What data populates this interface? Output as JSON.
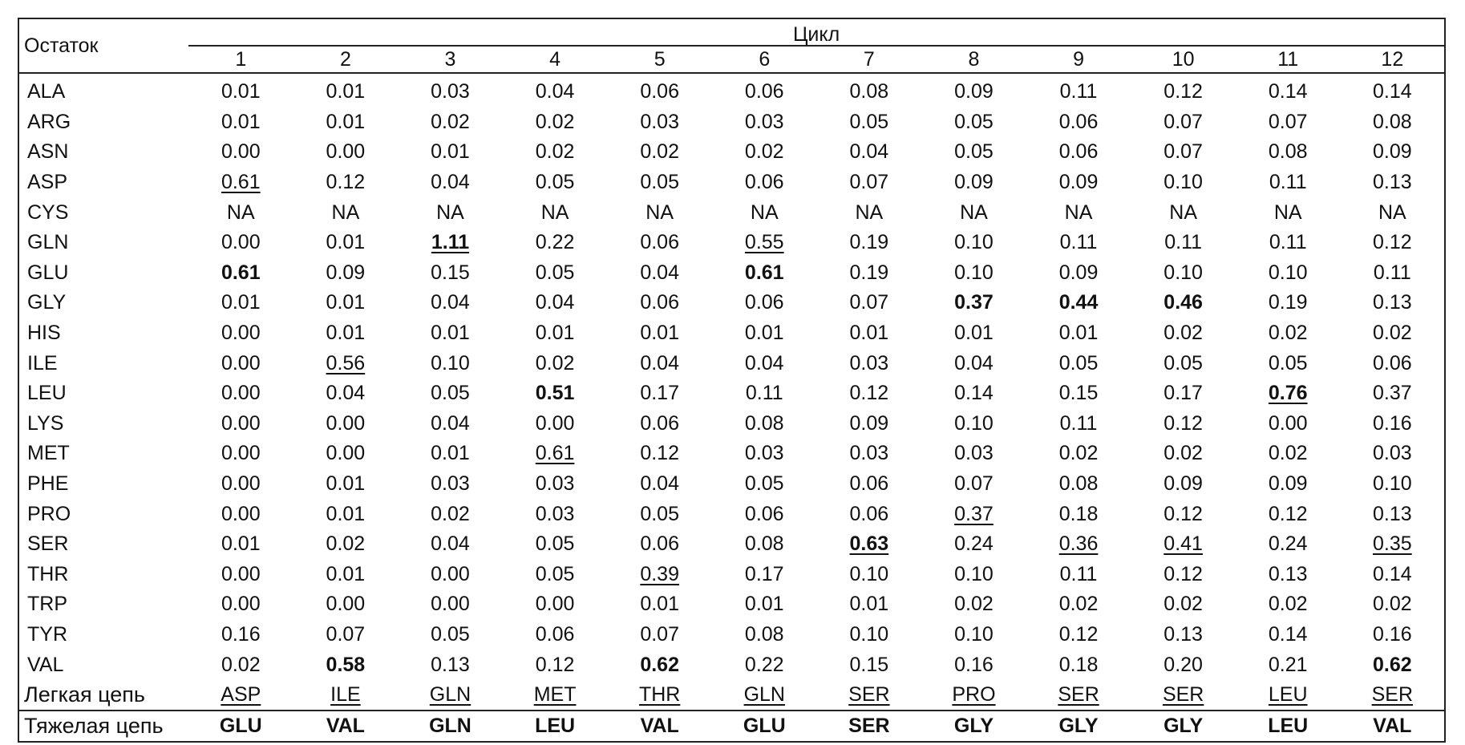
{
  "header": {
    "residue_label": "Остаток",
    "cycle_label": "Цикл",
    "cycles": [
      "1",
      "2",
      "3",
      "4",
      "5",
      "6",
      "7",
      "8",
      "9",
      "10",
      "11",
      "12"
    ]
  },
  "rows": [
    {
      "name": "ALA",
      "values": [
        "0.01",
        "0.01",
        "0.03",
        "0.04",
        "0.06",
        "0.06",
        "0.08",
        "0.09",
        "0.11",
        "0.12",
        "0.14",
        "0.14"
      ],
      "underline": [],
      "bold": []
    },
    {
      "name": "ARG",
      "values": [
        "0.01",
        "0.01",
        "0.02",
        "0.02",
        "0.03",
        "0.03",
        "0.05",
        "0.05",
        "0.06",
        "0.07",
        "0.07",
        "0.08"
      ],
      "underline": [],
      "bold": []
    },
    {
      "name": "ASN",
      "values": [
        "0.00",
        "0.00",
        "0.01",
        "0.02",
        "0.02",
        "0.02",
        "0.04",
        "0.05",
        "0.06",
        "0.07",
        "0.08",
        "0.09"
      ],
      "underline": [],
      "bold": []
    },
    {
      "name": "ASP",
      "values": [
        "0.61",
        "0.12",
        "0.04",
        "0.05",
        "0.05",
        "0.06",
        "0.07",
        "0.09",
        "0.09",
        "0.10",
        "0.11",
        "0.13"
      ],
      "underline": [
        0
      ],
      "bold": []
    },
    {
      "name": "CYS",
      "values": [
        "NA",
        "NA",
        "NA",
        "NA",
        "NA",
        "NA",
        "NA",
        "NA",
        "NA",
        "NA",
        "NA",
        "NA"
      ],
      "underline": [],
      "bold": []
    },
    {
      "name": "GLN",
      "values": [
        "0.00",
        "0.01",
        "1.11",
        "0.22",
        "0.06",
        "0.55",
        "0.19",
        "0.10",
        "0.11",
        "0.11",
        "0.11",
        "0.12"
      ],
      "underline": [
        2,
        5
      ],
      "bold": [
        2
      ]
    },
    {
      "name": "GLU",
      "values": [
        "0.61",
        "0.09",
        "0.15",
        "0.05",
        "0.04",
        "0.61",
        "0.19",
        "0.10",
        "0.09",
        "0.10",
        "0.10",
        "0.11"
      ],
      "underline": [],
      "bold": [
        0,
        5
      ]
    },
    {
      "name": "GLY",
      "values": [
        "0.01",
        "0.01",
        "0.04",
        "0.04",
        "0.06",
        "0.06",
        "0.07",
        "0.37",
        "0.44",
        "0.46",
        "0.19",
        "0.13"
      ],
      "underline": [],
      "bold": [
        7,
        8,
        9
      ]
    },
    {
      "name": "HIS",
      "values": [
        "0.00",
        "0.01",
        "0.01",
        "0.01",
        "0.01",
        "0.01",
        "0.01",
        "0.01",
        "0.01",
        "0.02",
        "0.02",
        "0.02"
      ],
      "underline": [],
      "bold": []
    },
    {
      "name": "ILE",
      "values": [
        "0.00",
        "0.56",
        "0.10",
        "0.02",
        "0.04",
        "0.04",
        "0.03",
        "0.04",
        "0.05",
        "0.05",
        "0.05",
        "0.06"
      ],
      "underline": [
        1
      ],
      "bold": []
    },
    {
      "name": "LEU",
      "values": [
        "0.00",
        "0.04",
        "0.05",
        "0.51",
        "0.17",
        "0.11",
        "0.12",
        "0.14",
        "0.15",
        "0.17",
        "0.76",
        "0.37"
      ],
      "underline": [
        10
      ],
      "bold": [
        3,
        10
      ]
    },
    {
      "name": "LYS",
      "values": [
        "0.00",
        "0.00",
        "0.04",
        "0.00",
        "0.06",
        "0.08",
        "0.09",
        "0.10",
        "0.11",
        "0.12",
        "0.00",
        "0.16"
      ],
      "underline": [],
      "bold": []
    },
    {
      "name": "MET",
      "values": [
        "0.00",
        "0.00",
        "0.01",
        "0.61",
        "0.12",
        "0.03",
        "0.03",
        "0.03",
        "0.02",
        "0.02",
        "0.02",
        "0.03"
      ],
      "underline": [
        3
      ],
      "bold": []
    },
    {
      "name": "PHE",
      "values": [
        "0.00",
        "0.01",
        "0.03",
        "0.03",
        "0.04",
        "0.05",
        "0.06",
        "0.07",
        "0.08",
        "0.09",
        "0.09",
        "0.10"
      ],
      "underline": [],
      "bold": []
    },
    {
      "name": "PRO",
      "values": [
        "0.00",
        "0.01",
        "0.02",
        "0.03",
        "0.05",
        "0.06",
        "0.06",
        "0.37",
        "0.18",
        "0.12",
        "0.12",
        "0.13"
      ],
      "underline": [
        7
      ],
      "bold": []
    },
    {
      "name": "SER",
      "values": [
        "0.01",
        "0.02",
        "0.04",
        "0.05",
        "0.06",
        "0.08",
        "0.63",
        "0.24",
        "0.36",
        "0.41",
        "0.24",
        "0.35"
      ],
      "underline": [
        6,
        8,
        9,
        11
      ],
      "bold": [
        6
      ]
    },
    {
      "name": "THR",
      "values": [
        "0.00",
        "0.01",
        "0.00",
        "0.05",
        "0.39",
        "0.17",
        "0.10",
        "0.10",
        "0.11",
        "0.12",
        "0.13",
        "0.14"
      ],
      "underline": [
        4
      ],
      "bold": []
    },
    {
      "name": "TRP",
      "values": [
        "0.00",
        "0.00",
        "0.00",
        "0.00",
        "0.01",
        "0.01",
        "0.01",
        "0.02",
        "0.02",
        "0.02",
        "0.02",
        "0.02"
      ],
      "underline": [],
      "bold": []
    },
    {
      "name": "TYR",
      "values": [
        "0.16",
        "0.07",
        "0.05",
        "0.06",
        "0.07",
        "0.08",
        "0.10",
        "0.10",
        "0.12",
        "0.13",
        "0.14",
        "0.16"
      ],
      "underline": [],
      "bold": []
    },
    {
      "name": "VAL",
      "values": [
        "0.02",
        "0.58",
        "0.13",
        "0.12",
        "0.62",
        "0.22",
        "0.15",
        "0.16",
        "0.18",
        "0.20",
        "0.21",
        "0.62"
      ],
      "underline": [],
      "bold": [
        1,
        4,
        11
      ]
    }
  ],
  "light_chain": {
    "label": "Легкая цепь",
    "values": [
      "ASP",
      "ILE",
      "GLN",
      "MET",
      "THR",
      "GLN",
      "SER",
      "PRO",
      "SER",
      "SER",
      "LEU",
      "SER"
    ]
  },
  "heavy_chain": {
    "label": "Тяжелая цепь",
    "values": [
      "GLU",
      "VAL",
      "GLN",
      "LEU",
      "VAL",
      "GLU",
      "SER",
      "GLY",
      "GLY",
      "GLY",
      "LEU",
      "VAL"
    ]
  }
}
